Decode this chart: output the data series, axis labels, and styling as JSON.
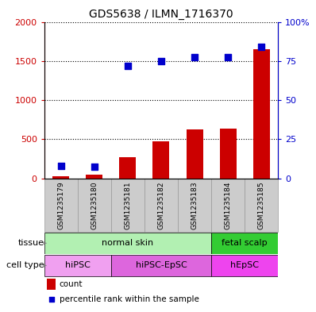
{
  "title": "GDS5638 / ILMN_1716370",
  "samples": [
    "GSM1235179",
    "GSM1235180",
    "GSM1235181",
    "GSM1235182",
    "GSM1235183",
    "GSM1235184",
    "GSM1235185"
  ],
  "counts": [
    30,
    50,
    270,
    470,
    630,
    635,
    1650
  ],
  "percentile_ranks": [
    8,
    7.5,
    72,
    75,
    77.5,
    77.5,
    84
  ],
  "count_color": "#cc0000",
  "percentile_color": "#0000cc",
  "ylim_left": [
    0,
    2000
  ],
  "ylim_right": [
    0,
    100
  ],
  "yticks_left": [
    0,
    500,
    1000,
    1500,
    2000
  ],
  "ytick_labels_left": [
    "0",
    "500",
    "1000",
    "1500",
    "2000"
  ],
  "yticks_right": [
    0,
    25,
    50,
    75,
    100
  ],
  "ytick_labels_right": [
    "0",
    "25",
    "50",
    "75",
    "100%"
  ],
  "tissue_groups": [
    {
      "label": "normal skin",
      "start": 0,
      "end": 4,
      "color": "#b2f0b2"
    },
    {
      "label": "fetal scalp",
      "start": 5,
      "end": 6,
      "color": "#33cc33"
    }
  ],
  "celltype_groups": [
    {
      "label": "hiPSC",
      "start": 0,
      "end": 1,
      "color": "#f0a0f0"
    },
    {
      "label": "hiPSC-EpSC",
      "start": 2,
      "end": 4,
      "color": "#dd66dd"
    },
    {
      "label": "hEpSC",
      "start": 5,
      "end": 6,
      "color": "#ee44ee"
    }
  ],
  "legend_count_label": "count",
  "legend_percentile_label": "percentile rank within the sample",
  "tissue_label": "tissue",
  "celltype_label": "cell type",
  "bar_width": 0.5,
  "sample_bg_color": "#cccccc",
  "sample_border_color": "#999999"
}
